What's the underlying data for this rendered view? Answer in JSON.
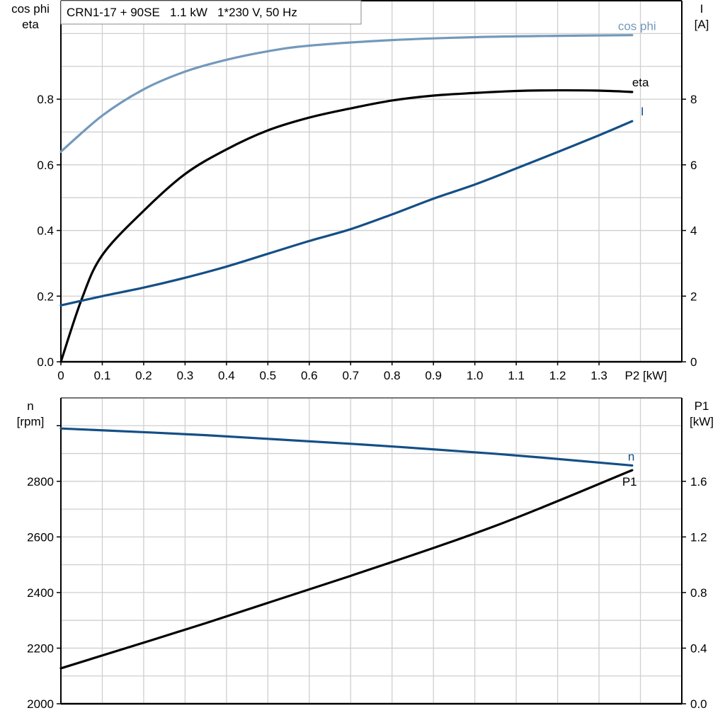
{
  "chart_data": [
    {
      "type": "line",
      "title": "CRN1-17 + 90SE   1.1 kW   1*230 V, 50 Hz",
      "xlabel": "P2 [kW]",
      "xlim": [
        0,
        1.5
      ],
      "xticks": [
        "0",
        "0.1",
        "0.2",
        "0.3",
        "0.4",
        "0.5",
        "0.6",
        "0.7",
        "0.8",
        "0.9",
        "1.0",
        "1.1",
        "1.2",
        "1.3"
      ],
      "ylabel_left": [
        "cos phi",
        "eta"
      ],
      "ylim_left": [
        0,
        1.1
      ],
      "yticks_left": [
        "0.0",
        "0.2",
        "0.4",
        "0.6",
        "0.8"
      ],
      "ylabel_right": [
        "I",
        "[A]"
      ],
      "ylim_right": [
        0,
        11
      ],
      "yticks_right": [
        "0",
        "2",
        "4",
        "6",
        "8"
      ],
      "grid": true,
      "series": [
        {
          "name": "cos phi",
          "axis": "left",
          "color": "#7399bb",
          "x": [
            0,
            0.1,
            0.2,
            0.3,
            0.4,
            0.5,
            0.6,
            0.8,
            1.0,
            1.2,
            1.38
          ],
          "y": [
            0.64,
            0.75,
            0.83,
            0.884,
            0.92,
            0.946,
            0.963,
            0.98,
            0.989,
            0.993,
            0.995
          ]
        },
        {
          "name": "eta",
          "axis": "left",
          "color": "#000000",
          "x": [
            0,
            0.05,
            0.1,
            0.2,
            0.3,
            0.4,
            0.5,
            0.6,
            0.7,
            0.8,
            0.9,
            1.0,
            1.1,
            1.2,
            1.3,
            1.38
          ],
          "y": [
            0,
            0.19,
            0.325,
            0.46,
            0.572,
            0.647,
            0.705,
            0.744,
            0.772,
            0.796,
            0.811,
            0.819,
            0.825,
            0.827,
            0.826,
            0.822
          ]
        },
        {
          "name": "I",
          "axis": "right",
          "color": "#144f86",
          "x": [
            0,
            0.1,
            0.2,
            0.3,
            0.4,
            0.5,
            0.6,
            0.7,
            0.8,
            0.9,
            1.0,
            1.1,
            1.2,
            1.3,
            1.38
          ],
          "y": [
            1.72,
            2.0,
            2.26,
            2.56,
            2.9,
            3.29,
            3.68,
            4.04,
            4.49,
            4.97,
            5.4,
            5.89,
            6.39,
            6.9,
            7.33
          ]
        }
      ]
    },
    {
      "type": "line",
      "xlim": [
        0,
        1.5
      ],
      "ylabel_left": [
        "n",
        "[rpm]"
      ],
      "ylim_left": [
        2000,
        3100
      ],
      "yticks_left": [
        "2000",
        "2200",
        "2400",
        "2600",
        "2800"
      ],
      "ylabel_right": [
        "P1",
        "[kW]"
      ],
      "ylim_right": [
        0,
        2.2
      ],
      "yticks_right": [
        "0.0",
        "0.4",
        "0.8",
        "1.2",
        "1.6"
      ],
      "grid": true,
      "series": [
        {
          "name": "n",
          "axis": "left",
          "color": "#144f86",
          "x": [
            0,
            0.35,
            0.7,
            1.05,
            1.38
          ],
          "y": [
            2990,
            2966,
            2935,
            2899,
            2857
          ]
        },
        {
          "name": "P1",
          "axis": "right",
          "color": "#000000",
          "x": [
            0,
            0.35,
            0.7,
            1.05,
            1.38
          ],
          "y": [
            0.255,
            0.58,
            0.92,
            1.28,
            1.68
          ]
        }
      ]
    }
  ]
}
